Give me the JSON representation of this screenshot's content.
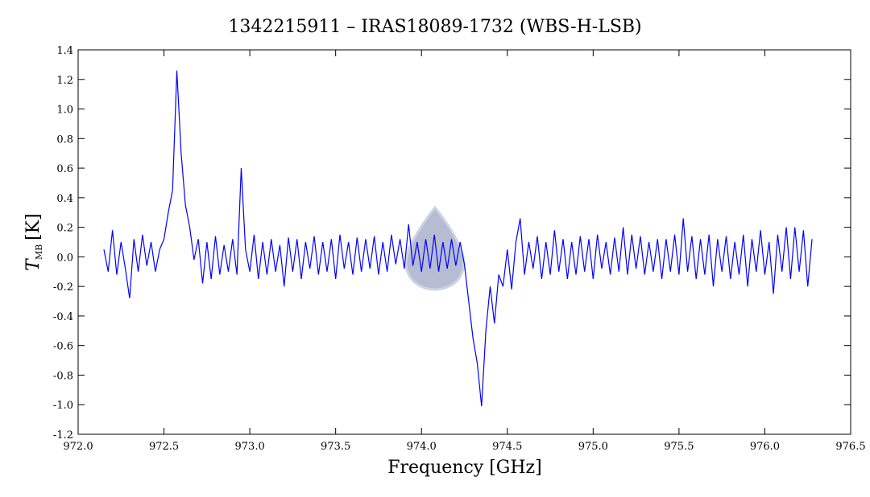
{
  "chart_data": {
    "type": "line",
    "title": "1342215911 – IRAS18089-1732 (WBS-H-LSB)",
    "x_label": "Frequency [GHz]",
    "y_label": {
      "symbol": "T",
      "subscript": "MB",
      "unit": "[K]"
    },
    "xlim": [
      972.0,
      976.5
    ],
    "xticks": [
      {
        "value": 972.0,
        "label": "972.0"
      },
      {
        "value": 972.5,
        "label": "972.5"
      },
      {
        "value": 973.0,
        "label": "973.0"
      },
      {
        "value": 973.5,
        "label": "973.5"
      },
      {
        "value": 974.0,
        "label": "974.0"
      },
      {
        "value": 974.5,
        "label": "974.5"
      },
      {
        "value": 975.0,
        "label": "975.0"
      },
      {
        "value": 975.5,
        "label": "975.5"
      },
      {
        "value": 976.0,
        "label": "976.0"
      },
      {
        "value": 976.5,
        "label": "976.5"
      }
    ],
    "ylim": [
      -1.2,
      1.4
    ],
    "yticks": [
      -1.2,
      {
        "value": -1.0,
        "label": "-1.0"
      },
      -0.8,
      -0.6,
      -0.4,
      -0.2,
      {
        "value": 0.0,
        "label": "0.0"
      },
      0.2,
      0.4,
      0.6,
      0.8,
      {
        "value": 1.0,
        "label": "1.0"
      },
      1.2,
      1.4
    ],
    "grid": false,
    "x": [
      972.15,
      972.175,
      972.2,
      972.225,
      972.25,
      972.275,
      972.3,
      972.325,
      972.35,
      972.375,
      972.4,
      972.425,
      972.45,
      972.475,
      972.5,
      972.525,
      972.55,
      972.575,
      972.6,
      972.625,
      972.65,
      972.675,
      972.7,
      972.725,
      972.75,
      972.775,
      972.8,
      972.825,
      972.85,
      972.875,
      972.9,
      972.925,
      972.95,
      972.975,
      973.0,
      973.025,
      973.05,
      973.075,
      973.1,
      973.125,
      973.15,
      973.175,
      973.2,
      973.225,
      973.25,
      973.275,
      973.3,
      973.325,
      973.35,
      973.375,
      973.4,
      973.425,
      973.45,
      973.475,
      973.5,
      973.525,
      973.55,
      973.575,
      973.6,
      973.625,
      973.65,
      973.675,
      973.7,
      973.725,
      973.75,
      973.775,
      973.8,
      973.825,
      973.85,
      973.875,
      973.9,
      973.925,
      973.95,
      973.975,
      974.0,
      974.025,
      974.05,
      974.075,
      974.1,
      974.125,
      974.15,
      974.175,
      974.2,
      974.225,
      974.25,
      974.275,
      974.3,
      974.325,
      974.35,
      974.375,
      974.4,
      974.425,
      974.45,
      974.475,
      974.5,
      974.525,
      974.55,
      974.575,
      974.6,
      974.625,
      974.65,
      974.675,
      974.7,
      974.725,
      974.75,
      974.775,
      974.8,
      974.825,
      974.85,
      974.875,
      974.9,
      974.925,
      974.95,
      974.975,
      975.0,
      975.025,
      975.05,
      975.075,
      975.1,
      975.125,
      975.15,
      975.175,
      975.2,
      975.225,
      975.25,
      975.275,
      975.3,
      975.325,
      975.35,
      975.375,
      975.4,
      975.425,
      975.45,
      975.475,
      975.5,
      975.525,
      975.55,
      975.575,
      975.6,
      975.625,
      975.65,
      975.675,
      975.7,
      975.725,
      975.75,
      975.775,
      975.8,
      975.825,
      975.85,
      975.875,
      975.9,
      975.925,
      975.95,
      975.975,
      976.0,
      976.025,
      976.05,
      976.075,
      976.1,
      976.125,
      976.15,
      976.175,
      976.2,
      976.225,
      976.25,
      976.275
    ],
    "series": [
      {
        "color": "#0000ff",
        "values": [
          0.05,
          -0.1,
          0.18,
          -0.12,
          0.1,
          -0.08,
          -0.28,
          0.12,
          -0.1,
          0.15,
          -0.06,
          0.1,
          -0.1,
          0.05,
          0.12,
          0.3,
          0.45,
          1.26,
          0.7,
          0.35,
          0.2,
          -0.02,
          0.12,
          -0.18,
          0.1,
          -0.15,
          0.14,
          -0.12,
          0.08,
          -0.1,
          0.12,
          -0.12,
          0.6,
          0.05,
          -0.1,
          0.15,
          -0.15,
          0.1,
          -0.12,
          0.12,
          -0.1,
          0.08,
          -0.2,
          0.13,
          -0.1,
          0.12,
          -0.15,
          0.1,
          -0.08,
          0.14,
          -0.12,
          0.1,
          -0.1,
          0.12,
          -0.15,
          0.15,
          -0.08,
          0.1,
          -0.12,
          0.13,
          -0.1,
          0.12,
          -0.08,
          0.14,
          -0.12,
          0.1,
          -0.1,
          0.15,
          -0.05,
          0.12,
          -0.08,
          0.22,
          -0.06,
          0.1,
          -0.1,
          0.12,
          -0.08,
          0.15,
          -0.1,
          0.1,
          -0.08,
          0.12,
          -0.06,
          0.1,
          -0.05,
          -0.3,
          -0.55,
          -0.72,
          -1.01,
          -0.5,
          -0.2,
          -0.45,
          -0.12,
          -0.2,
          0.05,
          -0.22,
          0.1,
          0.26,
          -0.12,
          0.1,
          -0.08,
          0.14,
          -0.15,
          0.1,
          -0.12,
          0.18,
          -0.1,
          0.12,
          -0.15,
          0.1,
          -0.12,
          0.14,
          -0.1,
          0.12,
          -0.15,
          0.15,
          -0.08,
          0.1,
          -0.12,
          0.13,
          -0.1,
          0.2,
          -0.12,
          0.15,
          -0.08,
          0.14,
          -0.12,
          0.1,
          -0.1,
          0.12,
          -0.15,
          0.12,
          -0.1,
          0.15,
          -0.12,
          0.26,
          -0.1,
          0.14,
          -0.15,
          0.12,
          -0.12,
          0.15,
          -0.2,
          0.12,
          -0.1,
          0.14,
          -0.15,
          0.1,
          -0.12,
          0.15,
          -0.2,
          0.12,
          -0.1,
          0.18,
          -0.12,
          0.1,
          -0.25,
          0.15,
          -0.1,
          0.2,
          -0.15,
          0.2,
          -0.1,
          0.18,
          -0.2,
          0.12
        ]
      }
    ]
  }
}
